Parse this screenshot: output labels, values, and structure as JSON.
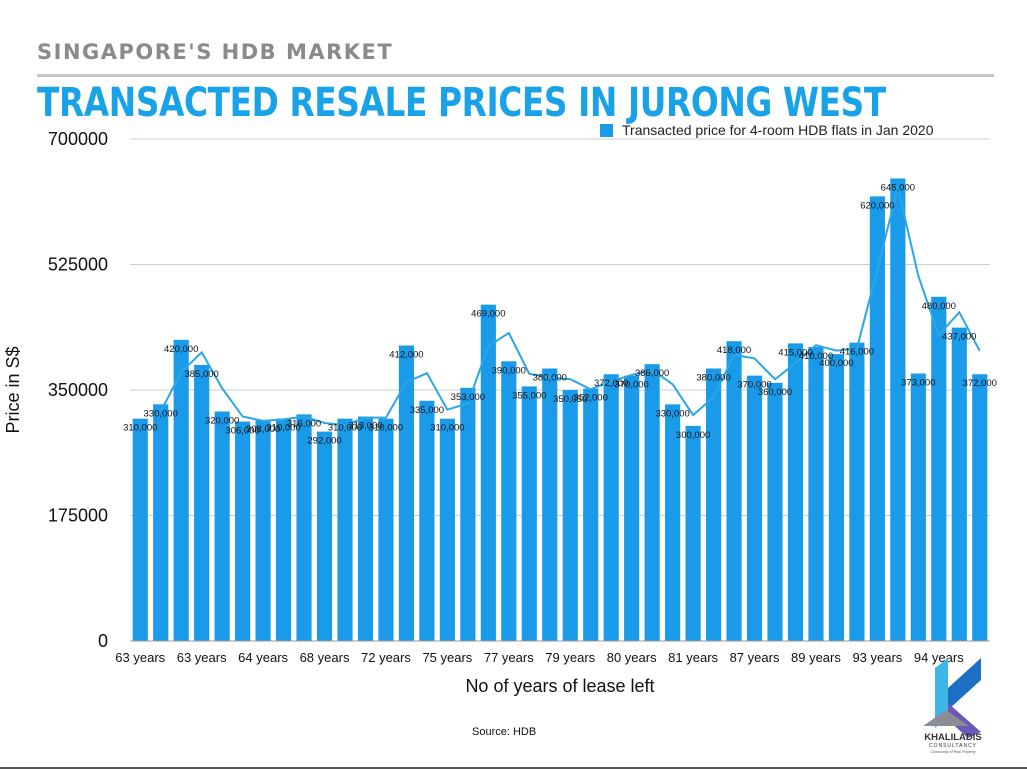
{
  "header": {
    "kicker": "SINGAPORE'S HDB MARKET",
    "headline": "TRANSACTED RESALE PRICES IN JURONG WEST"
  },
  "source": "Source: HDB",
  "logo": {
    "name": "KHALILADIS",
    "sub": "CONSULTANCY",
    "tagline": "Community of Real Property"
  },
  "colors": {
    "bar": "#1a9bea",
    "line": "#2aa7e6",
    "headline": "#1aa2e8",
    "grid": "#cfcfcf"
  },
  "chart_data": {
    "type": "bar",
    "title": "",
    "xlabel": "No of years of lease left",
    "ylabel": "Price in S$",
    "ylim": [
      0,
      700000
    ],
    "yticks": [
      0,
      175000,
      350000,
      525000,
      700000
    ],
    "grid": true,
    "legend_position": "top-right",
    "x_tick_labels": [
      "63 years",
      "63 years",
      "64 years",
      "68 years",
      "72 years",
      "75 years",
      "77 years",
      "79 years",
      "80 years",
      "81 years",
      "87 years",
      "89 years",
      "93 years",
      "94 years"
    ],
    "series": [
      {
        "name": "Transacted price for 4-room HDB flats in Jan 2020",
        "values": [
          310000,
          330000,
          420000,
          385000,
          320000,
          306000,
          308000,
          310000,
          316000,
          292000,
          310000,
          313000,
          310000,
          412000,
          335000,
          310000,
          353000,
          469000,
          390000,
          355000,
          380000,
          350050,
          352000,
          372000,
          370000,
          386000,
          330000,
          300000,
          380000,
          418000,
          370000,
          360000,
          415000,
          410000,
          400000,
          416000,
          620000,
          645000,
          373000,
          480000,
          437000,
          372000
        ],
        "labels": [
          "310,000",
          "330,000",
          "420,000",
          "385,000",
          "320,000",
          "306,000",
          "308,000",
          "310,000",
          "316,000",
          "292,000",
          "310,000",
          "313,000",
          "310,000",
          "412,000",
          "335,000",
          "310,000",
          "353,000",
          "469,000",
          "390,000",
          "355,000",
          "380,000",
          "350,050",
          "352,000",
          "372,000",
          "370,000",
          "386,000",
          "330,000",
          "300,000",
          "380,000",
          "418,000",
          "370,000",
          "360,000",
          "415,000",
          "410,000",
          "400,000",
          "416,000",
          "620,000",
          "645,000",
          "373,000",
          "480,000",
          "437,000",
          "372,000"
        ]
      }
    ]
  }
}
